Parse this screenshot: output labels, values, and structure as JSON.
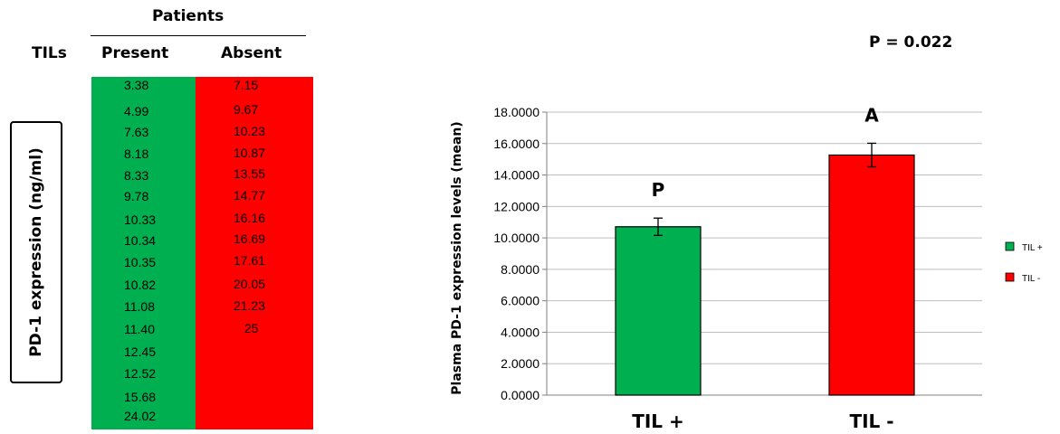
{
  "table": {
    "patients_header": "Patients",
    "tils_header": "TILs",
    "present_header": "Present",
    "absent_header": "Absent",
    "row_label": "PD-1 expression (ng/ml)",
    "present": [
      "3.38",
      "4.99",
      "7.63",
      "8.18",
      "8.33",
      "9.78",
      "10.33",
      "10.34",
      "10.35",
      "10.82",
      "11.08",
      "11.40",
      "12.45",
      "12.52",
      "15.68",
      "24.02"
    ],
    "absent": [
      "7.15",
      "9.67",
      "10.23",
      "10.87",
      "13.55",
      "14.77",
      "16.16",
      "16.69",
      "17.61",
      "20.05",
      "21.23",
      "25"
    ],
    "colors": {
      "present": "#00b050",
      "absent": "#ff0000"
    }
  },
  "p_value": "P = 0.022",
  "chart_data": {
    "type": "bar",
    "categories": [
      "TIL +",
      "TIL -"
    ],
    "values": [
      10.71,
      15.27
    ],
    "error": [
      0.55,
      0.75
    ],
    "bar_labels": [
      "P",
      "A"
    ],
    "colors": [
      "#00b050",
      "#ff0000"
    ],
    "ylabel": "Plasma PD-1 expression levels (mean)",
    "ylim": [
      0,
      18
    ],
    "yticks": [
      "0.0000",
      "2.0000",
      "4.0000",
      "6.0000",
      "8.0000",
      "10.0000",
      "12.0000",
      "14.0000",
      "16.0000",
      "18.0000"
    ],
    "grid": true,
    "legend": {
      "position": "right",
      "entries": [
        "TIL +",
        "TIL -"
      ]
    }
  }
}
